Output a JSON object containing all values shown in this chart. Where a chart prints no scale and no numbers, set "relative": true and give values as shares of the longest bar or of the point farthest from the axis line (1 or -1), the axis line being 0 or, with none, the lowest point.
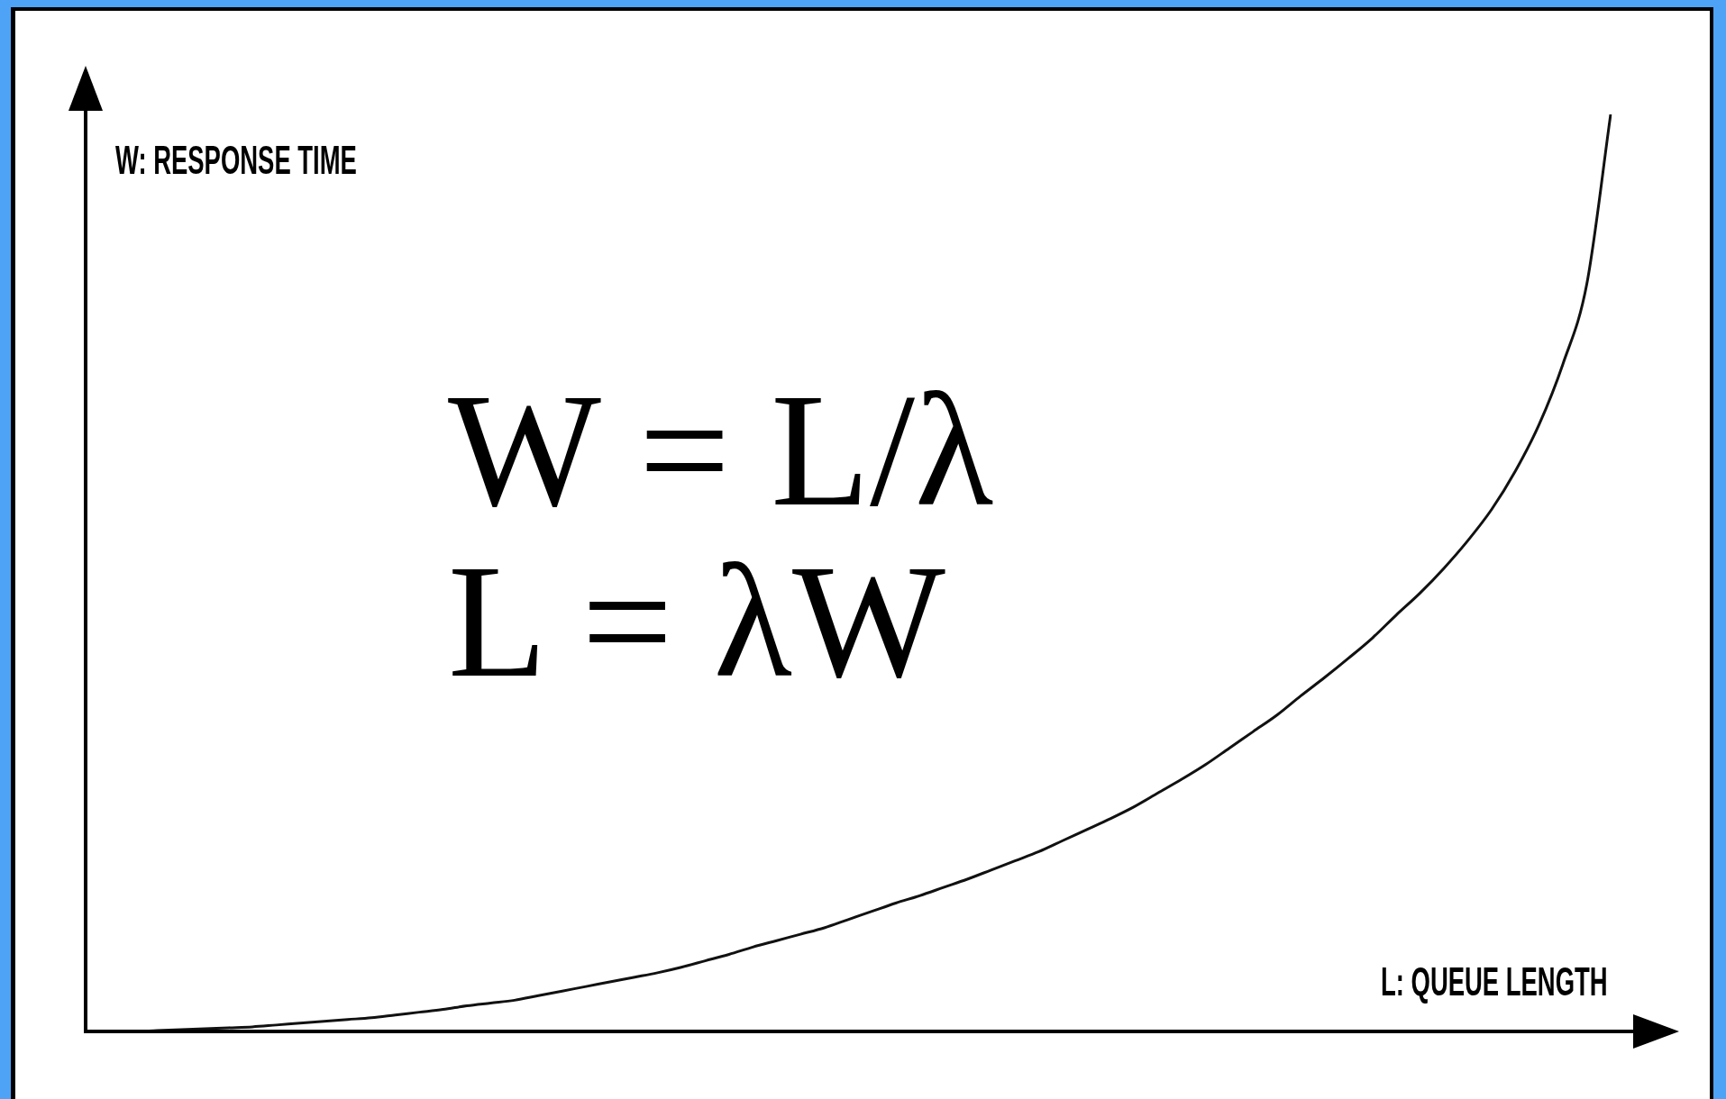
{
  "chart_data": {
    "type": "line",
    "xlabel": "L: QUEUE LENGTH",
    "ylabel": "W: RESPONSE TIME",
    "annotations": [
      "W = L/λ",
      "L = λW"
    ],
    "categories": [
      null,
      null,
      null,
      null,
      null,
      null,
      null,
      null,
      null,
      null,
      null,
      null,
      null,
      null,
      null,
      null,
      null,
      null,
      null,
      null,
      null,
      null,
      null,
      null,
      null,
      null,
      null,
      null,
      null,
      null,
      null,
      null,
      null,
      null,
      null,
      null,
      null,
      null,
      null,
      null,
      null,
      null,
      null,
      null,
      null,
      null,
      null,
      null,
      null,
      null,
      null,
      null,
      null,
      null,
      null,
      null,
      null,
      null,
      null,
      null,
      null,
      null,
      null,
      null,
      null
    ],
    "values": [
      0,
      0,
      0,
      0.001,
      0.002,
      0.003,
      0.004,
      0.005,
      0.007,
      0.009,
      0.011,
      0.013,
      0.015,
      0.018,
      0.021,
      0.024,
      0.028,
      0.031,
      0.034,
      0.039,
      0.044,
      0.049,
      0.054,
      0.059,
      0.064,
      0.07,
      0.077,
      0.084,
      0.092,
      0.099,
      0.106,
      0.113,
      0.122,
      0.131,
      0.14,
      0.148,
      0.157,
      0.166,
      0.176,
      0.186,
      0.196,
      0.208,
      0.22,
      0.232,
      0.245,
      0.26,
      0.275,
      0.291,
      0.309,
      0.327,
      0.345,
      0.366,
      0.386,
      0.407,
      0.429,
      0.454,
      0.478,
      0.505,
      0.535,
      0.569,
      0.611,
      0.662,
      0.728,
      0.815,
      1.0
    ],
    "color": "#111111",
    "relative": true
  }
}
